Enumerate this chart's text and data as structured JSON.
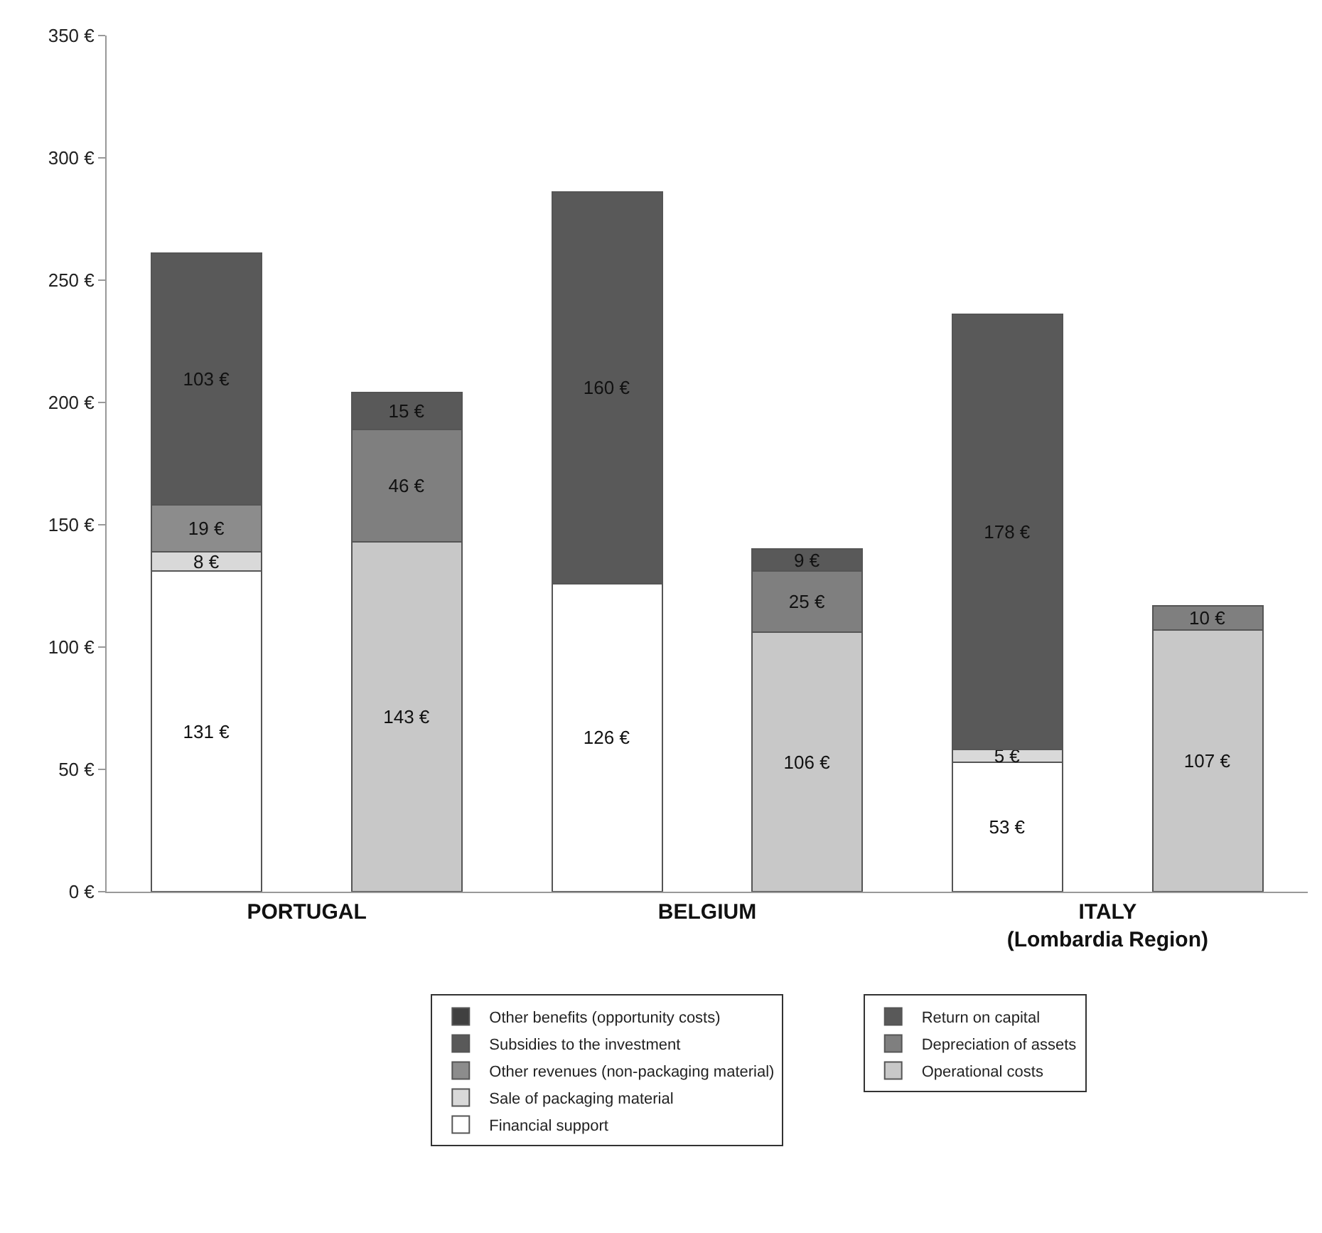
{
  "chart_data": {
    "type": "bar",
    "stacked": true,
    "categories": [
      "PORTUGAL",
      null,
      "BELGIUM",
      null,
      "ITALY\n(Lombardia Region)",
      null
    ],
    "series": [
      {
        "name": "Financial support",
        "color": "#ffffff",
        "values": [
          131,
          null,
          126,
          null,
          53,
          null
        ],
        "value_labels": [
          "131 €",
          null,
          "126 €",
          null,
          "53 €",
          null
        ]
      },
      {
        "name": "Sale of packaging material",
        "color": "#d9d9d9",
        "values": [
          8,
          null,
          null,
          null,
          5,
          null
        ],
        "value_labels": [
          "8 €",
          null,
          null,
          null,
          "5 €",
          null
        ]
      },
      {
        "name": "Other revenues (non-packaging material)",
        "color": "#8c8c8c",
        "values": [
          19,
          null,
          null,
          null,
          null,
          null
        ],
        "value_labels": [
          "19 €",
          null,
          null,
          null,
          null,
          null
        ]
      },
      {
        "name": "Subsidies to the investment",
        "color": "#595959",
        "values": [
          103,
          null,
          160,
          null,
          178,
          null
        ],
        "value_labels": [
          "103 €",
          null,
          "160 €",
          null,
          "178 €",
          null
        ]
      },
      {
        "name": "Other benefits (opportunity costs)",
        "color": "#404040",
        "values": [
          null,
          null,
          null,
          null,
          null,
          null
        ]
      },
      {
        "name": "Operational costs",
        "color": "#c8c8c8",
        "values": [
          null,
          143,
          null,
          106,
          null,
          107
        ],
        "value_labels": [
          null,
          "143 €",
          null,
          "106 €",
          null,
          "107 €"
        ]
      },
      {
        "name": "Depreciation of assets",
        "color": "#7f7f7f",
        "values": [
          null,
          46,
          null,
          25,
          null,
          10
        ],
        "value_labels": [
          null,
          "46 €",
          null,
          "25 €",
          null,
          "10 €"
        ]
      },
      {
        "name": "Return on capital",
        "color": "#595959",
        "values": [
          null,
          15,
          null,
          9,
          null,
          null
        ],
        "value_labels": [
          null,
          "15 €",
          null,
          "9 €",
          null,
          null
        ]
      }
    ],
    "ylim": [
      0,
      350
    ],
    "yticks": [
      {
        "value": 0,
        "label": "0 €"
      },
      {
        "value": 50,
        "label": "50 €"
      },
      {
        "value": 100,
        "label": "100 €"
      },
      {
        "value": 150,
        "label": "150 €"
      },
      {
        "value": 200,
        "label": "200 €"
      },
      {
        "value": 250,
        "label": "250 €"
      },
      {
        "value": 300,
        "label": "300 €"
      },
      {
        "value": 350,
        "label": "350 €"
      }
    ],
    "legend": "bottom"
  }
}
